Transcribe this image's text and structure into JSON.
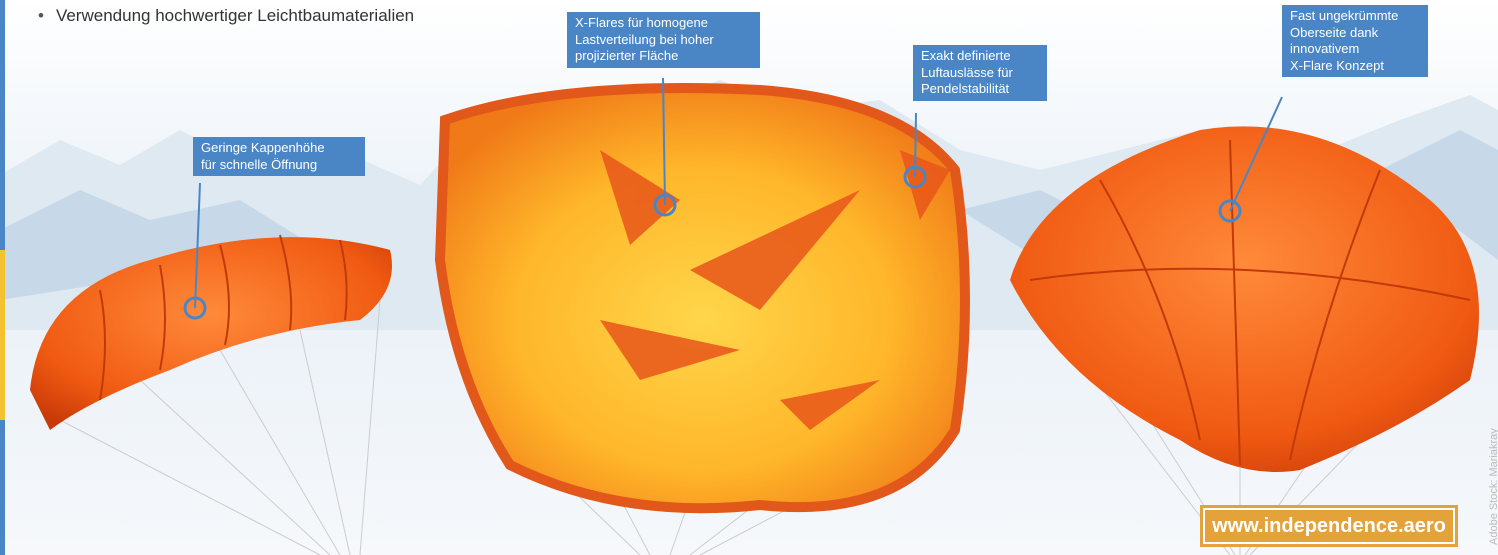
{
  "bullet": "Verwendung hochwertiger Leichtbaumaterialien",
  "callouts": [
    {
      "lines": [
        "Geringe Kappenhöhe",
        "für schnelle Öffnung"
      ]
    },
    {
      "lines": [
        "X-Flares für homogene",
        "Lastverteilung bei hoher",
        "projizierter Fläche"
      ]
    },
    {
      "lines": [
        "Exakt definierte",
        "Luftauslässe für",
        "Pendelstabilität"
      ]
    },
    {
      "lines": [
        "Fast ungekrümmte",
        "Oberseite dank",
        "innovativem",
        "X-Flare Konzept"
      ]
    }
  ],
  "credit": "Adobe Stock: Mariakray",
  "url": "www.independence.aero"
}
